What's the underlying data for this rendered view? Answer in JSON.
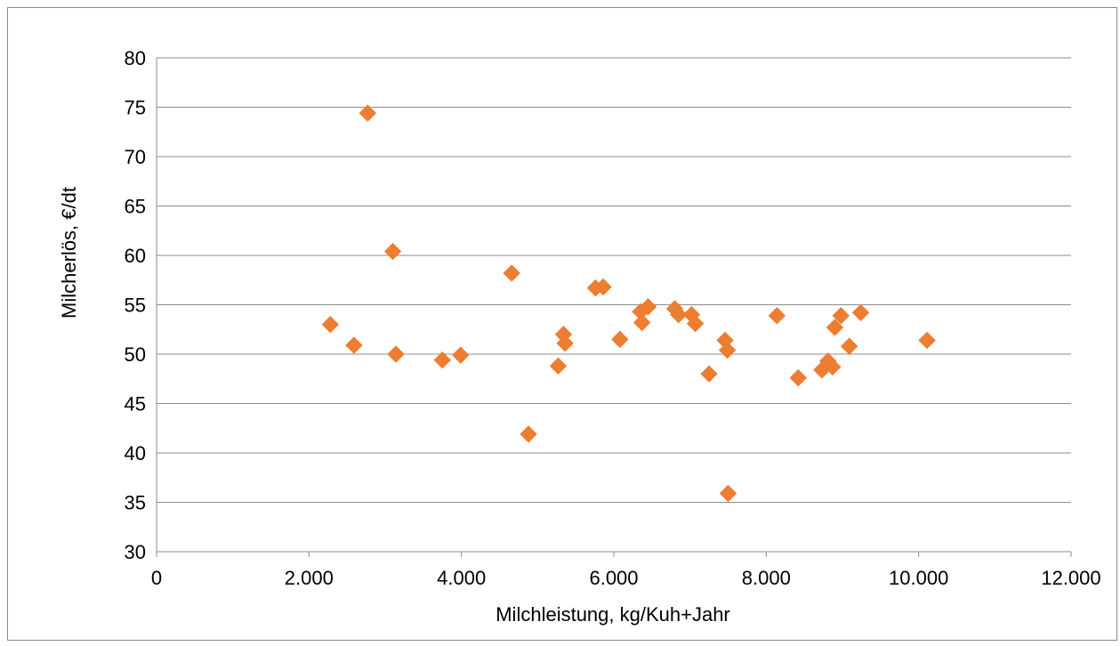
{
  "chart_data": {
    "type": "scatter",
    "title": "",
    "xlabel": "Milchleistung,  kg/Kuh+Jahr",
    "ylabel": "Milcherlös, €/dt",
    "xlim": [
      0,
      12000
    ],
    "ylim": [
      30,
      80
    ],
    "x_ticks": [
      0,
      2000,
      4000,
      6000,
      8000,
      10000,
      12000
    ],
    "x_tick_labels": [
      "0",
      "2.000",
      "4.000",
      "6.000",
      "8.000",
      "10.000",
      "12.000"
    ],
    "y_ticks": [
      30,
      35,
      40,
      45,
      50,
      55,
      60,
      65,
      70,
      75,
      80
    ],
    "y_tick_labels": [
      "30",
      "35",
      "40",
      "45",
      "50",
      "55",
      "60",
      "65",
      "70",
      "75",
      "80"
    ],
    "grid": "horizontal",
    "legend": "none",
    "marker": "diamond",
    "marker_color": "#ED7D31",
    "points": [
      {
        "x": 2280,
        "y": 53.0
      },
      {
        "x": 2590,
        "y": 50.9
      },
      {
        "x": 2770,
        "y": 74.4
      },
      {
        "x": 3100,
        "y": 60.4
      },
      {
        "x": 3140,
        "y": 50.0
      },
      {
        "x": 3750,
        "y": 49.4
      },
      {
        "x": 3990,
        "y": 49.9
      },
      {
        "x": 4660,
        "y": 58.2
      },
      {
        "x": 4880,
        "y": 41.9
      },
      {
        "x": 5270,
        "y": 48.8
      },
      {
        "x": 5340,
        "y": 52.0
      },
      {
        "x": 5360,
        "y": 51.1
      },
      {
        "x": 5760,
        "y": 56.7
      },
      {
        "x": 5860,
        "y": 56.8
      },
      {
        "x": 6080,
        "y": 51.5
      },
      {
        "x": 6350,
        "y": 54.3
      },
      {
        "x": 6370,
        "y": 53.2
      },
      {
        "x": 6450,
        "y": 54.8
      },
      {
        "x": 6800,
        "y": 54.6
      },
      {
        "x": 6850,
        "y": 54.0
      },
      {
        "x": 7020,
        "y": 54.0
      },
      {
        "x": 7070,
        "y": 53.1
      },
      {
        "x": 7250,
        "y": 48.0
      },
      {
        "x": 7460,
        "y": 51.4
      },
      {
        "x": 7490,
        "y": 50.4
      },
      {
        "x": 7500,
        "y": 35.9
      },
      {
        "x": 8140,
        "y": 53.9
      },
      {
        "x": 8420,
        "y": 47.6
      },
      {
        "x": 8730,
        "y": 48.4
      },
      {
        "x": 8810,
        "y": 49.3
      },
      {
        "x": 8870,
        "y": 48.7
      },
      {
        "x": 8900,
        "y": 52.7
      },
      {
        "x": 8980,
        "y": 53.9
      },
      {
        "x": 9090,
        "y": 50.8
      },
      {
        "x": 9240,
        "y": 54.2
      },
      {
        "x": 10110,
        "y": 51.4
      }
    ]
  }
}
